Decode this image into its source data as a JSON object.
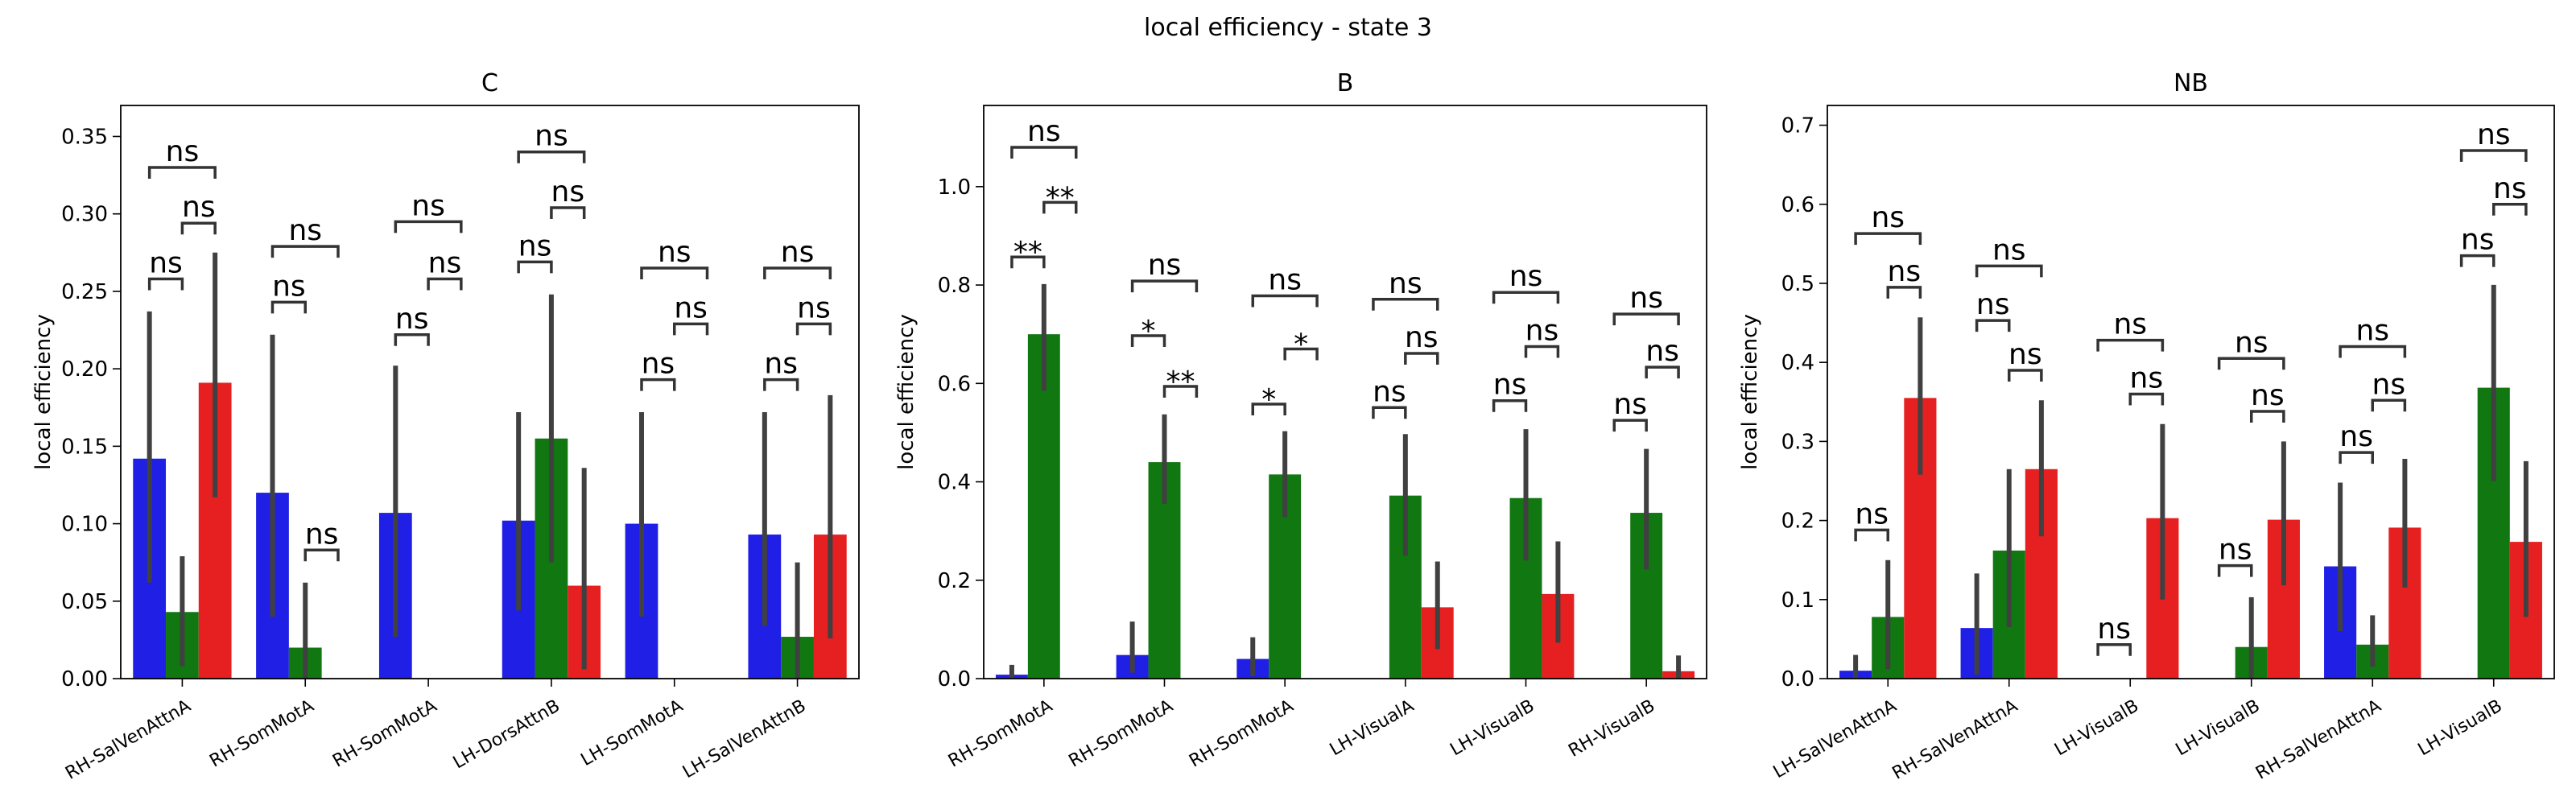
{
  "figure_title": "local efficiency - state 3",
  "chart_data": [
    {
      "type": "bar",
      "title": "C",
      "ylabel": "local efficiency",
      "ylim": [
        0,
        0.37
      ],
      "yticks": [
        "0.00",
        "0.05",
        "0.10",
        "0.15",
        "0.20",
        "0.25",
        "0.30",
        "0.35"
      ],
      "categories": [
        "RH-SalVenAttnA",
        "RH-SomMotA",
        "RH-SomMotA",
        "LH-DorsAttnB",
        "LH-SomMotA",
        "LH-SalVenAttnB"
      ],
      "series": [
        {
          "color": "#1f1fe6",
          "values": [
            0.142,
            0.12,
            0.107,
            0.102,
            0.1,
            0.093
          ],
          "err_low": [
            0.062,
            0.04,
            0.027,
            0.044,
            0.04,
            0.034
          ],
          "err_high": [
            0.237,
            0.222,
            0.202,
            0.172,
            0.172,
            0.172
          ]
        },
        {
          "color": "#117711",
          "values": [
            0.043,
            0.02,
            null,
            0.155,
            null,
            0.027
          ],
          "err_low": [
            0.008,
            0.0,
            null,
            0.075,
            null,
            0.0
          ],
          "err_high": [
            0.079,
            0.062,
            null,
            0.248,
            null,
            0.075
          ]
        },
        {
          "color": "#e62020",
          "values": [
            0.191,
            null,
            null,
            0.06,
            null,
            0.093
          ],
          "err_low": [
            0.117,
            null,
            null,
            0.006,
            null,
            0.026
          ],
          "err_high": [
            0.275,
            null,
            null,
            0.136,
            null,
            0.183
          ]
        }
      ],
      "annotations": [
        {
          "cat": 0,
          "a": 0,
          "b": 1,
          "label": "ns",
          "y": 0.258
        },
        {
          "cat": 0,
          "a": 1,
          "b": 2,
          "label": "ns",
          "y": 0.294
        },
        {
          "cat": 0,
          "a": 0,
          "b": 2,
          "label": "ns",
          "y": 0.33
        },
        {
          "cat": 1,
          "a": 0,
          "b": 1,
          "label": "ns",
          "y": 0.243
        },
        {
          "cat": 1,
          "a": 1,
          "b": 2,
          "label": "ns",
          "y": 0.083
        },
        {
          "cat": 1,
          "a": 0,
          "b": 2,
          "label": "ns",
          "y": 0.279
        },
        {
          "cat": 2,
          "a": 0,
          "b": 1,
          "label": "ns",
          "y": 0.222
        },
        {
          "cat": 2,
          "a": 1,
          "b": 2,
          "label": "ns",
          "y": 0.258
        },
        {
          "cat": 2,
          "a": 0,
          "b": 2,
          "label": "ns",
          "y": 0.295
        },
        {
          "cat": 3,
          "a": 0,
          "b": 1,
          "label": "ns",
          "y": 0.269
        },
        {
          "cat": 3,
          "a": 1,
          "b": 2,
          "label": "ns",
          "y": 0.304
        },
        {
          "cat": 3,
          "a": 0,
          "b": 2,
          "label": "ns",
          "y": 0.34
        },
        {
          "cat": 4,
          "a": 0,
          "b": 1,
          "label": "ns",
          "y": 0.193
        },
        {
          "cat": 4,
          "a": 1,
          "b": 2,
          "label": "ns",
          "y": 0.229
        },
        {
          "cat": 4,
          "a": 0,
          "b": 2,
          "label": "ns",
          "y": 0.265
        },
        {
          "cat": 5,
          "a": 0,
          "b": 1,
          "label": "ns",
          "y": 0.193
        },
        {
          "cat": 5,
          "a": 1,
          "b": 2,
          "label": "ns",
          "y": 0.229
        },
        {
          "cat": 5,
          "a": 0,
          "b": 2,
          "label": "ns",
          "y": 0.265
        }
      ]
    },
    {
      "type": "bar",
      "title": "B",
      "ylabel": "local efficiency",
      "ylim": [
        0,
        1.165
      ],
      "yticks": [
        "0.0",
        "0.2",
        "0.4",
        "0.6",
        "0.8",
        "1.0"
      ],
      "categories": [
        "RH-SomMotA",
        "RH-SomMotA",
        "RH-SomMotA",
        "LH-VisualA",
        "LH-VisualB",
        "RH-VisualB"
      ],
      "series": [
        {
          "color": "#1f1fe6",
          "values": [
            0.008,
            0.048,
            0.04,
            null,
            null,
            null
          ],
          "err_low": [
            0.0,
            0.012,
            0.005,
            null,
            null,
            null
          ],
          "err_high": [
            0.028,
            0.116,
            0.084,
            null,
            null,
            null
          ]
        },
        {
          "color": "#117711",
          "values": [
            0.7,
            0.44,
            0.415,
            0.372,
            0.367,
            0.337
          ],
          "err_low": [
            0.585,
            0.355,
            0.328,
            0.25,
            0.24,
            0.222
          ],
          "err_high": [
            0.802,
            0.537,
            0.503,
            0.497,
            0.507,
            0.467
          ]
        },
        {
          "color": "#e62020",
          "values": [
            null,
            null,
            null,
            0.145,
            0.172,
            0.015
          ],
          "err_low": [
            null,
            null,
            null,
            0.06,
            0.073,
            0.0
          ],
          "err_high": [
            null,
            null,
            null,
            0.238,
            0.279,
            0.047
          ]
        }
      ],
      "annotations": [
        {
          "cat": 0,
          "a": 0,
          "b": 1,
          "label": "**",
          "y": 0.857
        },
        {
          "cat": 0,
          "a": 1,
          "b": 2,
          "label": "**",
          "y": 0.968
        },
        {
          "cat": 0,
          "a": 0,
          "b": 2,
          "label": "ns",
          "y": 1.08
        },
        {
          "cat": 1,
          "a": 0,
          "b": 1,
          "label": "*",
          "y": 0.697
        },
        {
          "cat": 1,
          "a": 1,
          "b": 2,
          "label": "**",
          "y": 0.594
        },
        {
          "cat": 1,
          "a": 0,
          "b": 2,
          "label": "ns",
          "y": 0.808
        },
        {
          "cat": 2,
          "a": 0,
          "b": 1,
          "label": "*",
          "y": 0.558
        },
        {
          "cat": 2,
          "a": 1,
          "b": 2,
          "label": "*",
          "y": 0.67
        },
        {
          "cat": 2,
          "a": 0,
          "b": 2,
          "label": "ns",
          "y": 0.778
        },
        {
          "cat": 3,
          "a": 0,
          "b": 1,
          "label": "ns",
          "y": 0.551
        },
        {
          "cat": 3,
          "a": 1,
          "b": 2,
          "label": "ns",
          "y": 0.661
        },
        {
          "cat": 3,
          "a": 0,
          "b": 2,
          "label": "ns",
          "y": 0.771
        },
        {
          "cat": 4,
          "a": 0,
          "b": 1,
          "label": "ns",
          "y": 0.565
        },
        {
          "cat": 4,
          "a": 1,
          "b": 2,
          "label": "ns",
          "y": 0.675
        },
        {
          "cat": 4,
          "a": 0,
          "b": 2,
          "label": "ns",
          "y": 0.785
        },
        {
          "cat": 5,
          "a": 0,
          "b": 1,
          "label": "ns",
          "y": 0.525
        },
        {
          "cat": 5,
          "a": 1,
          "b": 2,
          "label": "ns",
          "y": 0.633
        },
        {
          "cat": 5,
          "a": 0,
          "b": 2,
          "label": "ns",
          "y": 0.741
        }
      ]
    },
    {
      "type": "bar",
      "title": "NB",
      "ylabel": "local efficiency",
      "ylim": [
        0,
        0.725
      ],
      "yticks": [
        "0.0",
        "0.1",
        "0.2",
        "0.3",
        "0.4",
        "0.5",
        "0.6",
        "0.7"
      ],
      "categories": [
        "LH-SalVenAttnA",
        "RH-SalVenAttnA",
        "LH-VisualB",
        "LH-VisualB",
        "RH-SalVenAttnA",
        "LH-VisualB"
      ],
      "series": [
        {
          "color": "#1f1fe6",
          "values": [
            0.01,
            0.064,
            null,
            null,
            0.142,
            null
          ],
          "err_low": [
            0.0,
            0.005,
            null,
            null,
            0.06,
            null
          ],
          "err_high": [
            0.03,
            0.133,
            null,
            null,
            0.248,
            null
          ]
        },
        {
          "color": "#117711",
          "values": [
            0.078,
            0.162,
            null,
            0.04,
            0.043,
            0.368
          ],
          "err_low": [
            0.012,
            0.065,
            null,
            0.0,
            0.015,
            0.25
          ],
          "err_high": [
            0.15,
            0.265,
            null,
            0.103,
            0.08,
            0.498
          ]
        },
        {
          "color": "#e62020",
          "values": [
            0.355,
            0.265,
            0.203,
            0.201,
            0.191,
            0.173
          ],
          "err_low": [
            0.258,
            0.18,
            0.1,
            0.118,
            0.115,
            0.078
          ],
          "err_high": [
            0.457,
            0.352,
            0.322,
            0.3,
            0.278,
            0.275
          ]
        }
      ],
      "annotations": [
        {
          "cat": 0,
          "a": 0,
          "b": 1,
          "label": "ns",
          "y": 0.188
        },
        {
          "cat": 0,
          "a": 1,
          "b": 2,
          "label": "ns",
          "y": 0.495
        },
        {
          "cat": 0,
          "a": 0,
          "b": 2,
          "label": "ns",
          "y": 0.563
        },
        {
          "cat": 1,
          "a": 0,
          "b": 1,
          "label": "ns",
          "y": 0.453
        },
        {
          "cat": 1,
          "a": 1,
          "b": 2,
          "label": "ns",
          "y": 0.39
        },
        {
          "cat": 1,
          "a": 0,
          "b": 2,
          "label": "ns",
          "y": 0.522
        },
        {
          "cat": 2,
          "a": 0,
          "b": 1,
          "label": "ns",
          "y": 0.043
        },
        {
          "cat": 2,
          "a": 1,
          "b": 2,
          "label": "ns",
          "y": 0.36
        },
        {
          "cat": 2,
          "a": 0,
          "b": 2,
          "label": "ns",
          "y": 0.428
        },
        {
          "cat": 3,
          "a": 0,
          "b": 1,
          "label": "ns",
          "y": 0.143
        },
        {
          "cat": 3,
          "a": 1,
          "b": 2,
          "label": "ns",
          "y": 0.338
        },
        {
          "cat": 3,
          "a": 0,
          "b": 2,
          "label": "ns",
          "y": 0.405
        },
        {
          "cat": 4,
          "a": 0,
          "b": 1,
          "label": "ns",
          "y": 0.286
        },
        {
          "cat": 4,
          "a": 1,
          "b": 2,
          "label": "ns",
          "y": 0.352
        },
        {
          "cat": 4,
          "a": 0,
          "b": 2,
          "label": "ns",
          "y": 0.42
        },
        {
          "cat": 5,
          "a": 0,
          "b": 1,
          "label": "ns",
          "y": 0.535
        },
        {
          "cat": 5,
          "a": 1,
          "b": 2,
          "label": "ns",
          "y": 0.6
        },
        {
          "cat": 5,
          "a": 0,
          "b": 2,
          "label": "ns",
          "y": 0.668
        }
      ]
    }
  ]
}
